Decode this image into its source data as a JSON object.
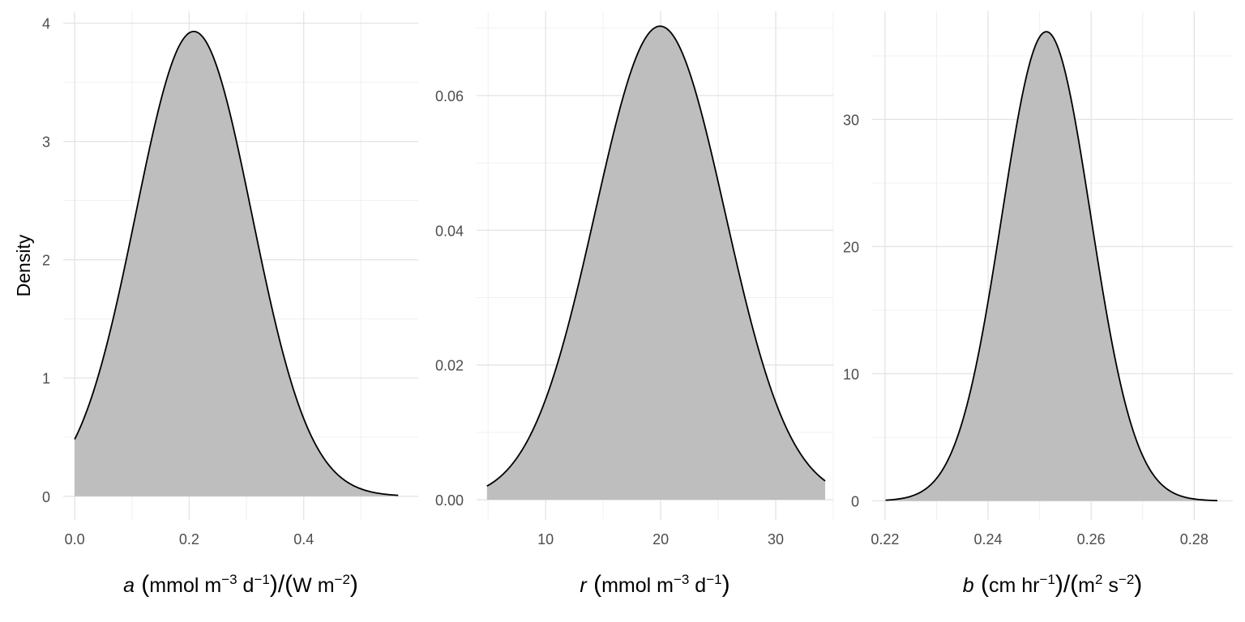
{
  "chart_data": [
    {
      "type": "area",
      "ylabel": "Density",
      "xlabel": {
        "var": "a",
        "text1": "mmol m",
        "sup1": "−3",
        "text2": " d",
        "sup2": "−1",
        "text3": "W m",
        "sup3": "−2"
      },
      "xlim": [
        -0.02,
        0.6
      ],
      "ylim": [
        -0.2,
        4.1
      ],
      "x_ticks": [
        0.0,
        0.2,
        0.4
      ],
      "x_tick_labels": [
        "0.0",
        "0.2",
        "0.4"
      ],
      "y_ticks": [
        0,
        1,
        2,
        3,
        4
      ],
      "y_tick_labels": [
        "0",
        "1",
        "2",
        "3",
        "4"
      ],
      "distribution": {
        "mean": 0.208,
        "sd": 0.1015,
        "peak": 3.93,
        "x_from": 0.0,
        "x_to": 0.565
      },
      "fill": "#bebebe",
      "line": "#000000",
      "grid": true
    },
    {
      "type": "area",
      "ylabel": "",
      "xlabel": {
        "var": "r",
        "text1": "mmol m",
        "sup1": "−3",
        "text2": " d",
        "sup2": "−1"
      },
      "xlim": [
        4.0,
        35.0
      ],
      "ylim": [
        -0.003,
        0.0725
      ],
      "x_ticks": [
        10,
        20,
        30
      ],
      "x_tick_labels": [
        "10",
        "20",
        "30"
      ],
      "y_ticks": [
        0.0,
        0.02,
        0.04,
        0.06
      ],
      "y_tick_labels": [
        "0.00",
        "0.02",
        "0.04",
        "0.06"
      ],
      "distribution": {
        "mean": 19.95,
        "sd": 5.65,
        "peak": 0.0703,
        "x_from": 4.9,
        "x_to": 34.3
      },
      "fill": "#bebebe",
      "line": "#000000",
      "grid": true
    },
    {
      "type": "area",
      "ylabel": "",
      "xlabel": {
        "var": "b",
        "text1": "cm hr",
        "sup1": "−1",
        "text3": "m",
        "sup3": "2",
        "text4": " s",
        "sup4": "−2"
      },
      "xlim": [
        0.2175,
        0.2875
      ],
      "ylim": [
        -1.5,
        38.5
      ],
      "x_ticks": [
        0.22,
        0.24,
        0.26,
        0.28
      ],
      "x_tick_labels": [
        "0.22",
        "0.24",
        "0.26",
        "0.28"
      ],
      "y_ticks": [
        0,
        10,
        20,
        30
      ],
      "y_tick_labels": [
        "0",
        "10",
        "20",
        "30"
      ],
      "distribution": {
        "mean": 0.2513,
        "sd": 0.00864,
        "peak": 36.9,
        "x_from": 0.2201,
        "x_to": 0.2845
      },
      "fill": "#bebebe",
      "line": "#000000",
      "grid": true
    }
  ]
}
